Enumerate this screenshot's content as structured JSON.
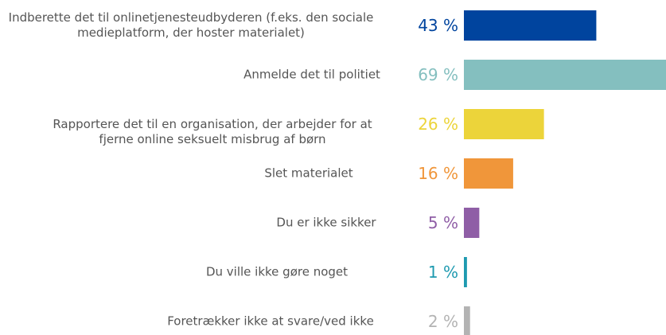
{
  "chart_data": {
    "type": "bar",
    "orientation": "horizontal",
    "categories": [
      "Indberette det til onlinetjenesteudbyderen (f.eks. den sociale medieplatform, der hoster materialet)",
      "Anmelde det til politiet",
      "Rapportere det til en organisation, der arbejder for at fjerne online seksuelt misbrug af børn",
      "Slet materialet",
      "Du er ikke sikker",
      "Du ville ikke gøre noget",
      "Foretrækker ikke at svare/ved ikke"
    ],
    "values": [
      43,
      69,
      26,
      16,
      5,
      1,
      2
    ],
    "value_labels": [
      "43 %",
      "69 %",
      "26 %",
      "16 %",
      "5 %",
      "1 %",
      "2 %"
    ],
    "colors": [
      "#00449e",
      "#84bfbf",
      "#ecd43a",
      "#f0963a",
      "#8f5ea6",
      "#1e9ab0",
      "#b3b3b3"
    ]
  }
}
